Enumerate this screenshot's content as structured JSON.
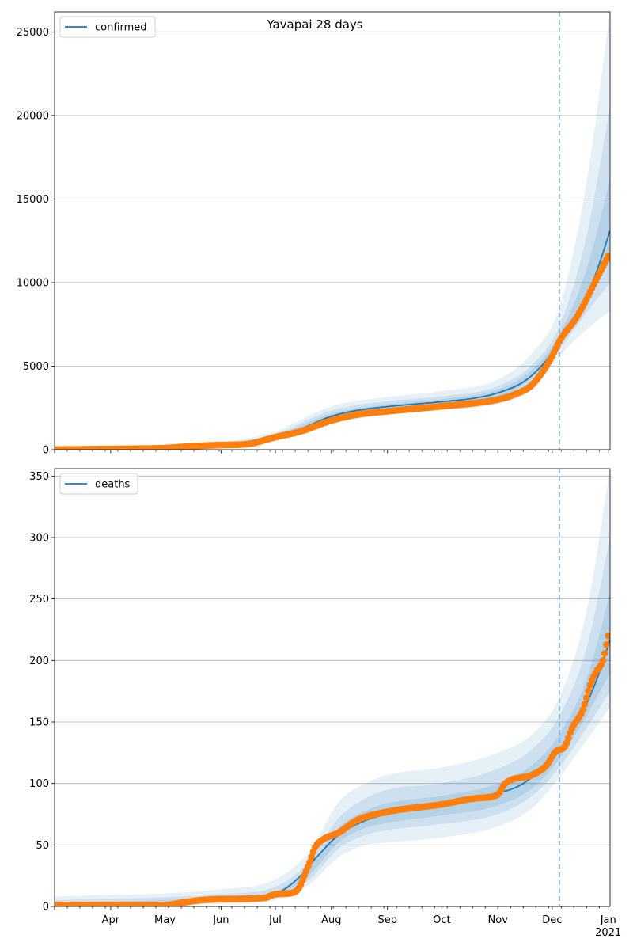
{
  "colors": {
    "model": "#1f77b4",
    "observed": "#ff7f0e",
    "band": "#1f77b4",
    "forecast_line": "#7fb0d6"
  },
  "chart_data": [
    {
      "type": "line",
      "title": "Yavapai 28 days",
      "ylim": [
        0,
        26200
      ],
      "yticks": [
        0,
        5000,
        10000,
        15000,
        20000,
        25000
      ],
      "xlim": [
        "2020-03-01",
        "2021-01-02"
      ],
      "grid": true,
      "legend": {
        "position": "top-left",
        "entries": [
          "confirmed"
        ]
      },
      "forecast_start": "2020-12-05",
      "x_tick_labels": [],
      "series": [
        {
          "name": "confirmed",
          "kind": "model_median",
          "points": [
            [
              "2020-03-01",
              0
            ],
            [
              "2020-04-01",
              25
            ],
            [
              "2020-05-01",
              110
            ],
            [
              "2020-05-20",
              250
            ],
            [
              "2020-06-01",
              300
            ],
            [
              "2020-06-20",
              420
            ],
            [
              "2020-07-01",
              780
            ],
            [
              "2020-07-15",
              1250
            ],
            [
              "2020-08-01",
              2000
            ],
            [
              "2020-08-15",
              2350
            ],
            [
              "2020-09-01",
              2580
            ],
            [
              "2020-10-01",
              2870
            ],
            [
              "2020-10-20",
              3100
            ],
            [
              "2020-11-01",
              3400
            ],
            [
              "2020-11-15",
              4050
            ],
            [
              "2020-11-25",
              5000
            ],
            [
              "2020-12-05",
              6400
            ],
            [
              "2020-12-15",
              8000
            ],
            [
              "2020-12-25",
              10500
            ],
            [
              "2021-01-02",
              13100
            ]
          ]
        },
        {
          "name": "",
          "kind": "observed",
          "points": [
            [
              "2020-03-01",
              10
            ],
            [
              "2020-04-01",
              45
            ],
            [
              "2020-05-01",
              100
            ],
            [
              "2020-05-15",
              200
            ],
            [
              "2020-06-01",
              280
            ],
            [
              "2020-06-15",
              330
            ],
            [
              "2020-07-01",
              750
            ],
            [
              "2020-07-15",
              1100
            ],
            [
              "2020-08-01",
              1750
            ],
            [
              "2020-08-15",
              2100
            ],
            [
              "2020-09-01",
              2300
            ],
            [
              "2020-10-01",
              2600
            ],
            [
              "2020-10-20",
              2800
            ],
            [
              "2020-11-01",
              3000
            ],
            [
              "2020-11-10",
              3300
            ],
            [
              "2020-11-20",
              3900
            ],
            [
              "2020-12-01",
              5600
            ],
            [
              "2020-12-05",
              6500
            ],
            [
              "2020-12-15",
              8000
            ],
            [
              "2020-12-25",
              10100
            ],
            [
              "2021-01-01",
              11600
            ]
          ]
        }
      ],
      "bands": [
        {
          "level": "outer",
          "lower": [
            [
              "2020-03-01",
              0
            ],
            [
              "2020-06-01",
              250
            ],
            [
              "2020-07-01",
              550
            ],
            [
              "2020-08-01",
              1550
            ],
            [
              "2020-09-01",
              2100
            ],
            [
              "2020-10-01",
              2380
            ],
            [
              "2020-11-01",
              2750
            ],
            [
              "2020-11-20",
              3600
            ],
            [
              "2020-12-05",
              5600
            ],
            [
              "2020-12-20",
              7200
            ],
            [
              "2021-01-02",
              8300
            ]
          ],
          "upper": [
            [
              "2020-03-01",
              40
            ],
            [
              "2020-06-01",
              450
            ],
            [
              "2020-07-01",
              1100
            ],
            [
              "2020-08-01",
              2600
            ],
            [
              "2020-09-01",
              3150
            ],
            [
              "2020-10-01",
              3500
            ],
            [
              "2020-11-01",
              4200
            ],
            [
              "2020-11-20",
              5800
            ],
            [
              "2020-12-05",
              8500
            ],
            [
              "2020-12-20",
              16000
            ],
            [
              "2021-01-02",
              26200
            ]
          ]
        },
        {
          "level": "middle",
          "lower": [
            [
              "2020-03-01",
              0
            ],
            [
              "2020-06-01",
              270
            ],
            [
              "2020-07-01",
              650
            ],
            [
              "2020-08-01",
              1750
            ],
            [
              "2020-09-01",
              2300
            ],
            [
              "2020-10-01",
              2580
            ],
            [
              "2020-11-01",
              2950
            ],
            [
              "2020-11-20",
              4000
            ],
            [
              "2020-12-05",
              6000
            ],
            [
              "2020-12-20",
              8200
            ],
            [
              "2021-01-02",
              10000
            ]
          ],
          "upper": [
            [
              "2020-03-01",
              30
            ],
            [
              "2020-06-01",
              380
            ],
            [
              "2020-07-01",
              950
            ],
            [
              "2020-08-01",
              2350
            ],
            [
              "2020-09-01",
              2900
            ],
            [
              "2020-10-01",
              3200
            ],
            [
              "2020-11-01",
              3800
            ],
            [
              "2020-11-20",
              5100
            ],
            [
              "2020-12-05",
              7400
            ],
            [
              "2020-12-20",
              12800
            ],
            [
              "2021-01-02",
              20500
            ]
          ]
        },
        {
          "level": "inner",
          "lower": [
            [
              "2020-03-01",
              0
            ],
            [
              "2020-06-01",
              285
            ],
            [
              "2020-07-01",
              720
            ],
            [
              "2020-08-01",
              1900
            ],
            [
              "2020-09-01",
              2450
            ],
            [
              "2020-10-01",
              2720
            ],
            [
              "2020-11-01",
              3150
            ],
            [
              "2020-11-20",
              4300
            ],
            [
              "2020-12-05",
              6200
            ],
            [
              "2020-12-20",
              8800
            ],
            [
              "2021-01-02",
              11300
            ]
          ],
          "upper": [
            [
              "2020-03-01",
              20
            ],
            [
              "2020-06-01",
              330
            ],
            [
              "2020-07-01",
              850
            ],
            [
              "2020-08-01",
              2150
            ],
            [
              "2020-09-01",
              2720
            ],
            [
              "2020-10-01",
              3020
            ],
            [
              "2020-11-01",
              3600
            ],
            [
              "2020-11-20",
              4800
            ],
            [
              "2020-12-05",
              6900
            ],
            [
              "2020-12-20",
              10800
            ],
            [
              "2021-01-02",
              16200
            ]
          ]
        }
      ]
    },
    {
      "type": "line",
      "title": "",
      "ylim": [
        0,
        356
      ],
      "yticks": [
        0,
        50,
        100,
        150,
        200,
        250,
        300,
        350
      ],
      "xlim": [
        "2020-03-01",
        "2021-01-02"
      ],
      "grid": true,
      "legend": {
        "position": "top-left",
        "entries": [
          "deaths"
        ]
      },
      "forecast_start": "2020-12-05",
      "x_tick_labels": [
        "Apr",
        "May",
        "Jun",
        "Jul",
        "Aug",
        "Sep",
        "Oct",
        "Nov",
        "Dec",
        "Jan\n2021"
      ],
      "series": [
        {
          "name": "deaths",
          "kind": "model_median",
          "points": [
            [
              "2020-03-01",
              0
            ],
            [
              "2020-05-01",
              2
            ],
            [
              "2020-06-01",
              5
            ],
            [
              "2020-06-25",
              8
            ],
            [
              "2020-07-05",
              13
            ],
            [
              "2020-07-15",
              25
            ],
            [
              "2020-07-25",
              42
            ],
            [
              "2020-08-05",
              58
            ],
            [
              "2020-08-20",
              70
            ],
            [
              "2020-09-01",
              75
            ],
            [
              "2020-10-01",
              82
            ],
            [
              "2020-11-01",
              92
            ],
            [
              "2020-11-15",
              100
            ],
            [
              "2020-12-05",
              127
            ],
            [
              "2020-12-15",
              150
            ],
            [
              "2020-12-25",
              182
            ],
            [
              "2021-01-02",
              217
            ]
          ]
        },
        {
          "name": "",
          "kind": "observed",
          "points": [
            [
              "2020-03-01",
              1
            ],
            [
              "2020-05-01",
              1
            ],
            [
              "2020-05-10",
              3
            ],
            [
              "2020-05-20",
              5
            ],
            [
              "2020-06-01",
              6
            ],
            [
              "2020-06-25",
              7
            ],
            [
              "2020-07-01",
              10
            ],
            [
              "2020-07-10",
              11
            ],
            [
              "2020-07-14",
              15
            ],
            [
              "2020-07-17",
              25
            ],
            [
              "2020-07-20",
              36
            ],
            [
              "2020-07-23",
              48
            ],
            [
              "2020-07-28",
              55
            ],
            [
              "2020-08-05",
              60
            ],
            [
              "2020-08-15",
              70
            ],
            [
              "2020-09-01",
              77
            ],
            [
              "2020-10-01",
              83
            ],
            [
              "2020-10-20",
              88
            ],
            [
              "2020-11-01",
              91
            ],
            [
              "2020-11-05",
              100
            ],
            [
              "2020-11-20",
              107
            ],
            [
              "2020-11-28",
              115
            ],
            [
              "2020-12-03",
              126
            ],
            [
              "2020-12-08",
              130
            ],
            [
              "2020-12-12",
              145
            ],
            [
              "2020-12-18",
              160
            ],
            [
              "2020-12-22",
              180
            ],
            [
              "2020-12-25",
              190
            ],
            [
              "2020-12-29",
              200
            ],
            [
              "2021-01-01",
              220
            ]
          ]
        }
      ],
      "bands": [
        {
          "level": "outer",
          "lower": [
            [
              "2020-03-01",
              0
            ],
            [
              "2020-06-01",
              2
            ],
            [
              "2020-07-01",
              5
            ],
            [
              "2020-07-20",
              18
            ],
            [
              "2020-08-05",
              40
            ],
            [
              "2020-08-20",
              50
            ],
            [
              "2020-09-01",
              52
            ],
            [
              "2020-10-01",
              56
            ],
            [
              "2020-11-01",
              65
            ],
            [
              "2020-11-20",
              80
            ],
            [
              "2020-12-05",
              105
            ],
            [
              "2020-12-20",
              135
            ],
            [
              "2021-01-02",
              162
            ]
          ],
          "upper": [
            [
              "2020-03-01",
              8
            ],
            [
              "2020-06-01",
              14
            ],
            [
              "2020-07-01",
              22
            ],
            [
              "2020-07-20",
              45
            ],
            [
              "2020-08-05",
              85
            ],
            [
              "2020-08-20",
              100
            ],
            [
              "2020-09-01",
              107
            ],
            [
              "2020-10-01",
              113
            ],
            [
              "2020-11-01",
              125
            ],
            [
              "2020-11-20",
              140
            ],
            [
              "2020-12-05",
              170
            ],
            [
              "2020-12-20",
              240
            ],
            [
              "2021-01-02",
              356
            ]
          ]
        },
        {
          "level": "middle",
          "lower": [
            [
              "2020-03-01",
              0
            ],
            [
              "2020-06-01",
              3
            ],
            [
              "2020-07-01",
              7
            ],
            [
              "2020-07-20",
              22
            ],
            [
              "2020-08-05",
              47
            ],
            [
              "2020-08-20",
              58
            ],
            [
              "2020-09-01",
              62
            ],
            [
              "2020-10-01",
              67
            ],
            [
              "2020-11-01",
              75
            ],
            [
              "2020-11-20",
              90
            ],
            [
              "2020-12-05",
              113
            ],
            [
              "2020-12-20",
              145
            ],
            [
              "2021-01-02",
              175
            ]
          ],
          "upper": [
            [
              "2020-03-01",
              5
            ],
            [
              "2020-06-01",
              10
            ],
            [
              "2020-07-01",
              16
            ],
            [
              "2020-07-20",
              37
            ],
            [
              "2020-08-05",
              72
            ],
            [
              "2020-08-20",
              88
            ],
            [
              "2020-09-01",
              95
            ],
            [
              "2020-10-01",
              100
            ],
            [
              "2020-11-01",
              112
            ],
            [
              "2020-11-20",
              128
            ],
            [
              "2020-12-05",
              155
            ],
            [
              "2020-12-20",
              210
            ],
            [
              "2021-01-02",
              300
            ]
          ]
        },
        {
          "level": "inner",
          "lower": [
            [
              "2020-03-01",
              0
            ],
            [
              "2020-06-01",
              4
            ],
            [
              "2020-07-01",
              9
            ],
            [
              "2020-07-20",
              26
            ],
            [
              "2020-08-05",
              52
            ],
            [
              "2020-08-20",
              64
            ],
            [
              "2020-09-01",
              68
            ],
            [
              "2020-10-01",
              74
            ],
            [
              "2020-11-01",
              82
            ],
            [
              "2020-11-20",
              96
            ],
            [
              "2020-12-05",
              120
            ],
            [
              "2020-12-20",
              155
            ],
            [
              "2021-01-02",
              190
            ]
          ],
          "upper": [
            [
              "2020-03-01",
              3
            ],
            [
              "2020-06-01",
              7
            ],
            [
              "2020-07-01",
              12
            ],
            [
              "2020-07-20",
              32
            ],
            [
              "2020-08-05",
              64
            ],
            [
              "2020-08-20",
              78
            ],
            [
              "2020-09-01",
              84
            ],
            [
              "2020-10-01",
              90
            ],
            [
              "2020-11-01",
              100
            ],
            [
              "2020-11-20",
              115
            ],
            [
              "2020-12-05",
              140
            ],
            [
              "2020-12-20",
              185
            ],
            [
              "2021-01-02",
              255
            ]
          ]
        }
      ]
    }
  ]
}
